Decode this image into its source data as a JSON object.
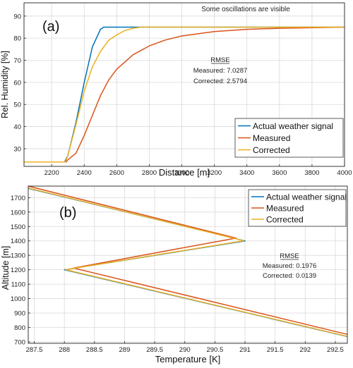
{
  "chart_data": [
    {
      "type": "line",
      "panel_label": "(a)",
      "annotation": "Some oscillations are visible",
      "xlabel": "Distance [m]",
      "ylabel": "Rel. Humidity [%]",
      "xlim": [
        2030,
        4000
      ],
      "ylim": [
        22,
        96
      ],
      "xticks": [
        2200,
        2400,
        2600,
        2800,
        3000,
        3200,
        3400,
        3600,
        3800,
        4000
      ],
      "yticks": [
        30,
        40,
        50,
        60,
        70,
        80,
        90
      ],
      "grid": true,
      "legend_position": "bottom-right",
      "rmse": {
        "title": "RMSE",
        "measured": "Measured: 7.0287",
        "corrected": "Corrected: 2.5794"
      },
      "series": [
        {
          "name": "Actual weather signal",
          "color": "#0072BD",
          "x": [
            2030,
            2280,
            2300,
            2350,
            2400,
            2450,
            2500,
            2520,
            4000
          ],
          "y": [
            24,
            24,
            27,
            42,
            60,
            76,
            84,
            85,
            85
          ]
        },
        {
          "name": "Measured",
          "color": "#D95319",
          "x": [
            2030,
            2290,
            2300,
            2350,
            2400,
            2450,
            2500,
            2550,
            2600,
            2700,
            2800,
            2900,
            3000,
            3200,
            3400,
            3600,
            4000
          ],
          "y": [
            24,
            24,
            25,
            28,
            36,
            45,
            54,
            61,
            66,
            72.5,
            76.5,
            79.2,
            81,
            83,
            84,
            84.5,
            85
          ]
        },
        {
          "name": "Corrected",
          "color": "#EDB120",
          "x": [
            2030,
            2285,
            2300,
            2350,
            2400,
            2450,
            2500,
            2550,
            2600,
            2650,
            2700,
            2750,
            2800,
            4000
          ],
          "y": [
            24,
            24,
            27,
            41,
            56,
            67,
            74,
            79,
            81.5,
            83.5,
            84.5,
            85,
            85,
            85
          ]
        }
      ]
    },
    {
      "type": "line",
      "panel_label": "(b)",
      "xlabel": "Temperature [K]",
      "ylabel": "Altitude [m]",
      "xlim": [
        287.4,
        292.7
      ],
      "ylim": [
        690,
        1780
      ],
      "xticks": [
        287.5,
        288,
        288.5,
        289,
        289.5,
        290,
        290.5,
        291,
        291.5,
        292,
        292.5
      ],
      "xtick_labels": [
        "287.5",
        "288",
        "288.5",
        "289",
        "289.5",
        "290",
        "290.5",
        "291",
        "291.5",
        "292",
        "292.5"
      ],
      "yticks": [
        700,
        800,
        900,
        1000,
        1100,
        1200,
        1300,
        1400,
        1500,
        1600,
        1700
      ],
      "grid": true,
      "legend_position": "top-right",
      "rmse": {
        "title": "RMSE",
        "measured": "Measured: 0.1976",
        "corrected": "Corrected: 0.0139"
      },
      "series": [
        {
          "name": "Actual weather signal",
          "color": "#0072BD",
          "x": [
            287.4,
            291.0,
            288.0,
            292.7
          ],
          "y": [
            1765,
            1400,
            1200,
            737
          ]
        },
        {
          "name": "Measured",
          "color": "#D95319",
          "x": [
            287.4,
            290.85,
            288.15,
            292.7
          ],
          "y": [
            1780,
            1420,
            1212,
            752
          ]
        },
        {
          "name": "Corrected",
          "color": "#EDB120",
          "x": [
            287.4,
            290.98,
            288.02,
            292.7
          ],
          "y": [
            1767,
            1401,
            1201,
            738
          ]
        }
      ]
    }
  ]
}
